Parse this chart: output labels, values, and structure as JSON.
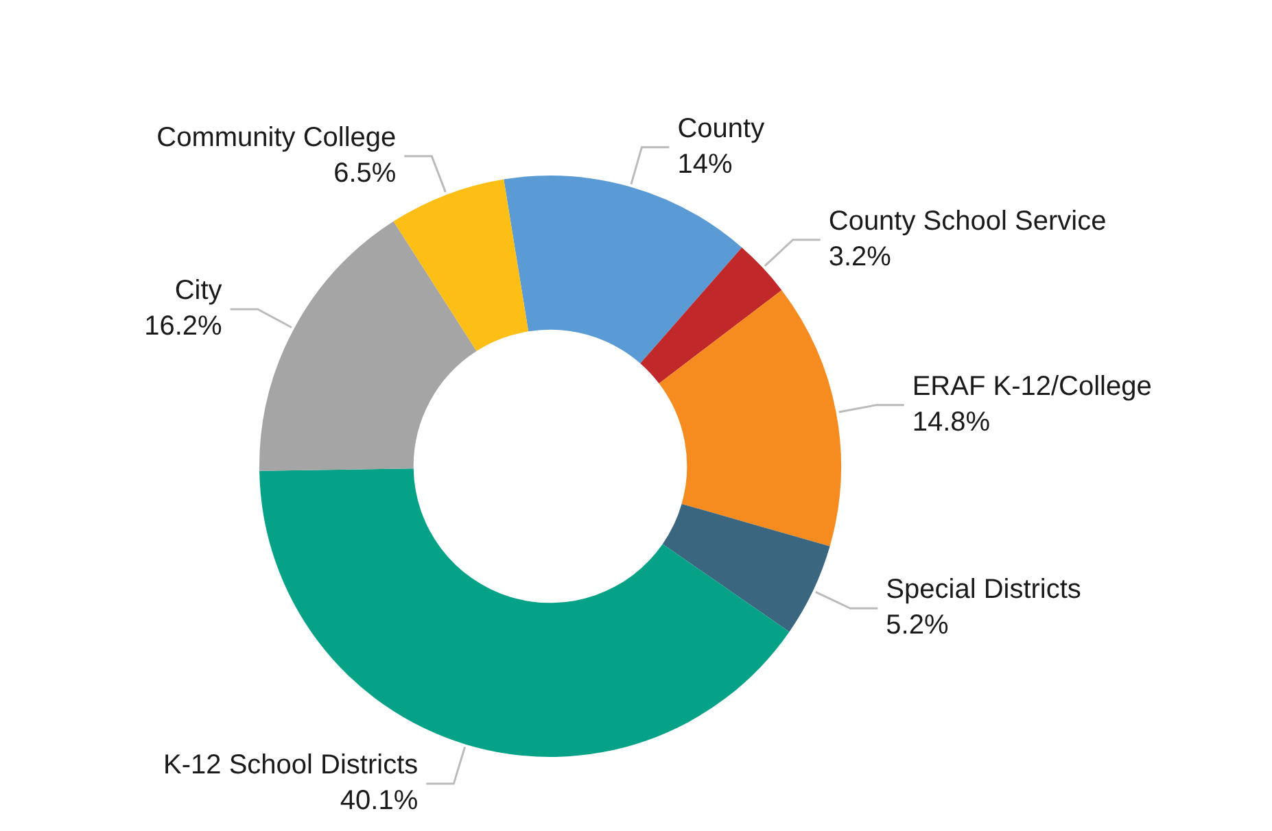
{
  "chart_data": {
    "type": "donut",
    "categories": [
      "County",
      "County School Service",
      "ERAF K-12/College",
      "Special Districts",
      "K-12 School Districts",
      "City",
      "Community College"
    ],
    "values": [
      14,
      3.2,
      14.8,
      5.2,
      40.1,
      16.2,
      6.5
    ],
    "value_labels": [
      "14%",
      "3.2%",
      "14.8%",
      "5.2%",
      "40.1%",
      "16.2%",
      "6.5%"
    ],
    "colors": [
      "#5b9bd5",
      "#c0282a",
      "#f68b1f",
      "#3a6680",
      "#06a288",
      "#a5a5a5",
      "#fdbe16"
    ]
  }
}
